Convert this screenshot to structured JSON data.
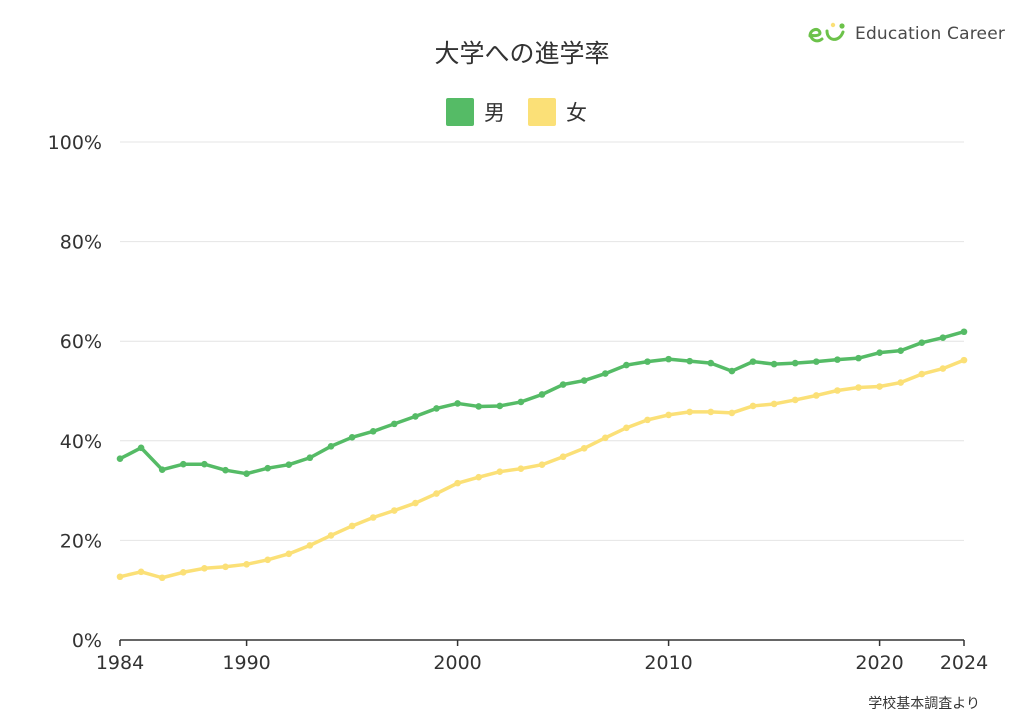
{
  "brand": {
    "name": "Education Career",
    "logo_icon": "ec-logo-icon",
    "logo_color": "#6cc24a"
  },
  "source_note": "学校基本調査より",
  "chart_data": {
    "type": "line",
    "title": "大学への進学率",
    "xlabel": "",
    "ylabel": "",
    "x": [
      1984,
      1985,
      1986,
      1987,
      1988,
      1989,
      1990,
      1991,
      1992,
      1993,
      1994,
      1995,
      1996,
      1997,
      1998,
      1999,
      2000,
      2001,
      2002,
      2003,
      2004,
      2005,
      2006,
      2007,
      2008,
      2009,
      2010,
      2011,
      2012,
      2013,
      2014,
      2015,
      2016,
      2017,
      2018,
      2019,
      2020,
      2021,
      2022,
      2023,
      2024
    ],
    "x_ticks": [
      "1984",
      "1990",
      "2000",
      "2010",
      "2020",
      "2024"
    ],
    "x_tick_values": [
      1984,
      1990,
      2000,
      2010,
      2020,
      2024
    ],
    "xlim": [
      1984,
      2024
    ],
    "ylim": [
      0,
      100
    ],
    "y_ticks": [
      0,
      20,
      40,
      60,
      80,
      100
    ],
    "y_tick_labels": [
      "0%",
      "20%",
      "40%",
      "60%",
      "80%",
      "100%"
    ],
    "grid": "horizontal",
    "legend_position": "top-center",
    "series": [
      {
        "name": "男",
        "color": "#55bb66",
        "values": [
          36.4,
          38.6,
          34.2,
          35.3,
          35.3,
          34.1,
          33.4,
          34.5,
          35.2,
          36.6,
          38.9,
          40.7,
          41.9,
          43.4,
          44.9,
          46.5,
          47.5,
          46.9,
          47.0,
          47.8,
          49.3,
          51.3,
          52.1,
          53.5,
          55.2,
          55.9,
          56.4,
          56.0,
          55.6,
          54.0,
          55.9,
          55.4,
          55.6,
          55.9,
          56.3,
          56.6,
          57.7,
          58.1,
          59.7,
          60.7,
          61.9
        ]
      },
      {
        "name": "女",
        "color": "#fbe077",
        "values": [
          12.7,
          13.7,
          12.5,
          13.6,
          14.4,
          14.7,
          15.2,
          16.1,
          17.3,
          19.0,
          21.0,
          22.9,
          24.6,
          26.0,
          27.5,
          29.4,
          31.5,
          32.7,
          33.8,
          34.4,
          35.2,
          36.8,
          38.5,
          40.6,
          42.6,
          44.2,
          45.2,
          45.8,
          45.8,
          45.6,
          47.0,
          47.4,
          48.2,
          49.1,
          50.1,
          50.7,
          50.9,
          51.7,
          53.4,
          54.5,
          56.2
        ]
      }
    ],
    "colors": {
      "grid": "#e4e4e4",
      "axis": "#333333",
      "text": "#333333"
    }
  }
}
